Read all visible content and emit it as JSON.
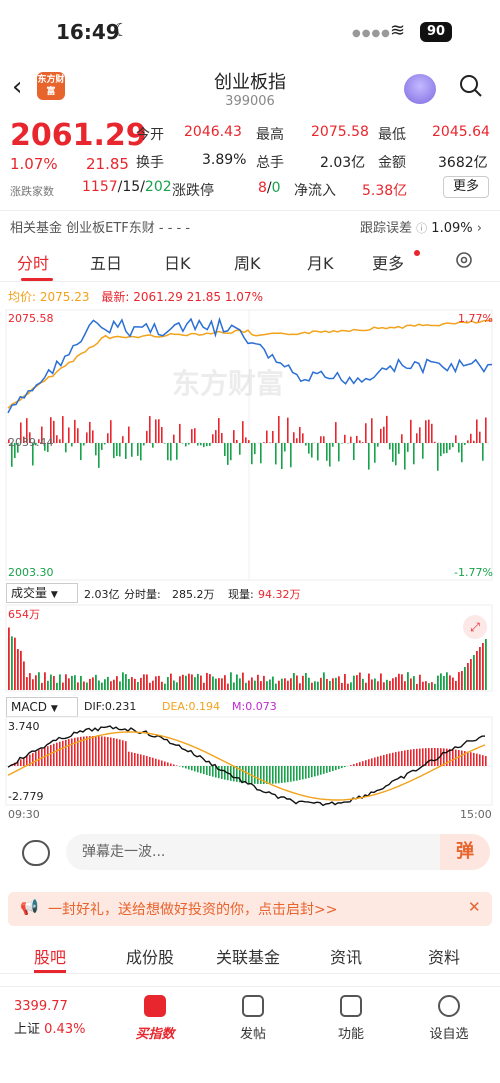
{
  "status": {
    "time": "16:49",
    "battery": "90"
  },
  "header": {
    "logo_text": "东方财富",
    "title": "创业板指",
    "code": "399006"
  },
  "quote": {
    "price": "2061.29",
    "change_pct": "1.07%",
    "change": "21.85",
    "adv_label": "涨跌家数",
    "adv_up": "1157",
    "adv_flat": "15",
    "adv_down": "202",
    "open_label": "今开",
    "open": "2046.43",
    "high_label": "最高",
    "high": "2075.58",
    "low_label": "最低",
    "low": "2045.64",
    "turnover_label": "换手",
    "turnover": "3.89%",
    "volume_label": "总手",
    "volume": "2.03亿",
    "amount_label": "金额",
    "amount": "3682亿",
    "limit_label": "涨跌停",
    "limit_up": "8",
    "limit_down": "0",
    "inflow_label": "净流入",
    "inflow": "5.38亿",
    "more": "更多"
  },
  "fund": {
    "left": "相关基金  创业板ETF东财 - - - -",
    "right_label": "跟踪误差",
    "right_value": "1.09%"
  },
  "tabs": [
    "分时",
    "五日",
    "日K",
    "周K",
    "月K",
    "更多"
  ],
  "legend": {
    "avg_label": "均价:",
    "avg": "2075.23",
    "latest_label": "最新:",
    "latest": "2061.29",
    "chg": "21.85",
    "pct": "1.07%"
  },
  "chart_axis": {
    "top": "2075.58",
    "mid": "2039.44",
    "bottom": "2003.30",
    "top_pct": "1.77%",
    "bottom_pct": "-1.77%",
    "watermark": "东方财富"
  },
  "volume": {
    "selector": "成交量",
    "total": "2.03亿",
    "period_label": "分时量:",
    "period": "285.2万",
    "now_label": "现量:",
    "now": "94.32万",
    "max": "654万"
  },
  "macd": {
    "selector": "MACD",
    "dif": "DIF:0.231",
    "dea": "DEA:0.194",
    "m": "M:0.073",
    "top": "3.740",
    "bottom": "-2.779",
    "start": "09:30",
    "end": "15:00"
  },
  "danmu": {
    "placeholder": "弹幕走一波...",
    "send": "弹"
  },
  "banner": {
    "text": "一封好礼，送给想做好投资的你，点击启封>>"
  },
  "bottom_tabs": [
    "股吧",
    "成份股",
    "关联基金",
    "资讯",
    "资料"
  ],
  "nav": {
    "index_value": "3399.77",
    "index_name": "上证",
    "index_pct": "0.43%",
    "items": [
      "买指数",
      "发帖",
      "功能",
      "设自选"
    ]
  },
  "colors": {
    "up": "#e8262d",
    "down": "#16a34a",
    "price_line": "#2a6fd6",
    "avg_line": "#f2a21b"
  }
}
